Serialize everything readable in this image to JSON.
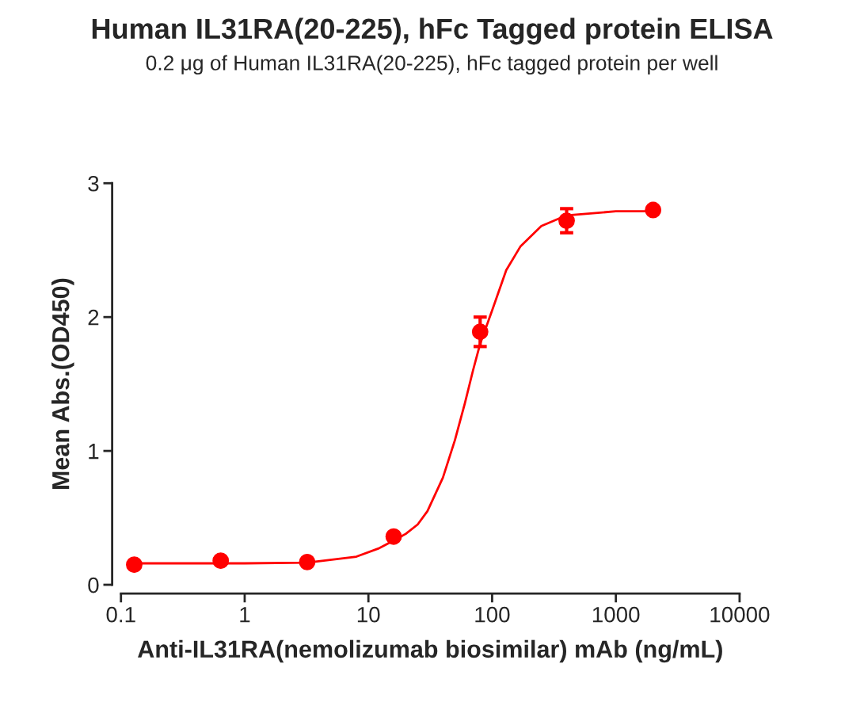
{
  "chart_data": {
    "type": "scatter",
    "title": "Human IL31RA(20-225), hFc Tagged protein ELISA",
    "subtitle": "0.2 μg of Human IL31RA(20-225), hFc tagged protein per well",
    "xlabel": "Anti-IL31RA(nemolizumab biosimilar) mAb (ng/mL)",
    "ylabel": "Mean Abs.(OD450)",
    "log": "x",
    "xlim": [
      0.1,
      10000
    ],
    "xticks": [
      0.1,
      1,
      10,
      100,
      1000,
      10000
    ],
    "ylim": [
      0,
      3
    ],
    "yticks": [
      0,
      1,
      2,
      3
    ],
    "grid": false,
    "legend": false,
    "series": [
      {
        "color": "#ff0000",
        "marker": "circle",
        "x": [
          0.128,
          0.64,
          3.2,
          16,
          80,
          400,
          2000
        ],
        "values": [
          0.15,
          0.18,
          0.17,
          0.36,
          1.89,
          2.72,
          2.8
        ],
        "errors": [
          null,
          null,
          null,
          null,
          0.11,
          0.09,
          null
        ]
      },
      {
        "type": "line",
        "color": "#ff0000",
        "marker": "none",
        "line_style": "solid",
        "x": [
          0.128,
          1,
          3.2,
          8,
          12,
          16,
          20,
          25,
          30,
          40,
          50,
          60,
          70,
          80,
          100,
          130,
          170,
          250,
          400,
          1000,
          2000
        ],
        "values": [
          0.16,
          0.16,
          0.165,
          0.21,
          0.27,
          0.33,
          0.38,
          0.45,
          0.55,
          0.8,
          1.08,
          1.35,
          1.6,
          1.8,
          2.05,
          2.35,
          2.53,
          2.68,
          2.76,
          2.79,
          2.79
        ]
      }
    ]
  }
}
